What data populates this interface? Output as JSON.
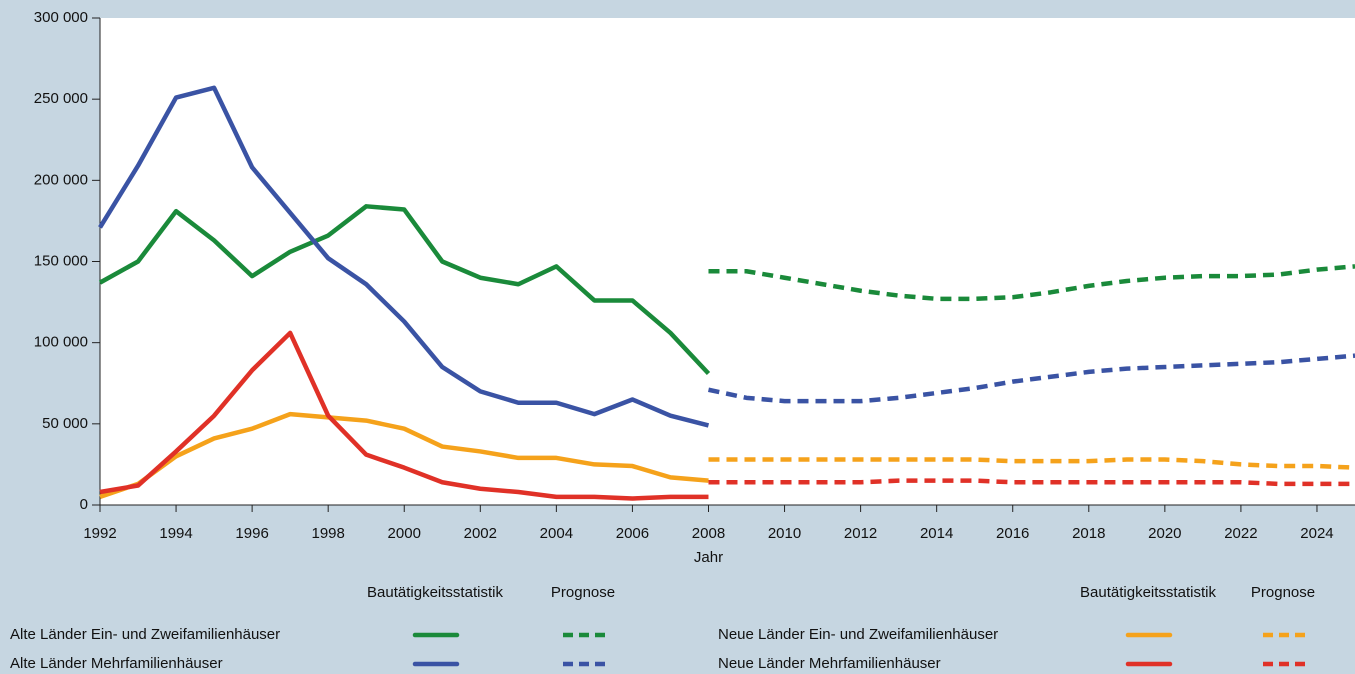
{
  "chart_data": {
    "type": "line",
    "x_label": "Jahr",
    "xlim": [
      1992,
      2025
    ],
    "xticks": [
      1992,
      1994,
      1996,
      1998,
      2000,
      2002,
      2004,
      2006,
      2008,
      2010,
      2012,
      2014,
      2016,
      2018,
      2020,
      2022,
      2024
    ],
    "ylim": [
      0,
      300000
    ],
    "yticks": [
      0,
      {
        "value": 50000,
        "label": "50 000"
      },
      {
        "value": 100000,
        "label": "100 000"
      },
      {
        "value": 150000,
        "label": "150 000"
      },
      {
        "value": 200000,
        "label": "200 000"
      },
      {
        "value": 250000,
        "label": "250 000"
      },
      {
        "value": 300000,
        "label": "300 000"
      }
    ],
    "legend_headers": [
      "Bautätigkeitsstatistik",
      "Prognose"
    ],
    "x": [
      1992,
      1993,
      1994,
      1995,
      1996,
      1997,
      1998,
      1999,
      2000,
      2001,
      2002,
      2003,
      2004,
      2005,
      2006,
      2007,
      2008
    ],
    "x_forecast": [
      2008,
      2009,
      2010,
      2011,
      2012,
      2013,
      2014,
      2015,
      2016,
      2017,
      2018,
      2019,
      2020,
      2021,
      2022,
      2023,
      2024,
      2025
    ],
    "series": [
      {
        "name": "Alte Länder Ein- und Zweifamilienhäuser",
        "color": "#1a8a3a",
        "values": [
          137000,
          150000,
          181000,
          163000,
          141000,
          156000,
          166000,
          184000,
          182000,
          150000,
          140000,
          136000,
          147000,
          126000,
          126000,
          106000,
          81000
        ],
        "forecast_values": [
          144000,
          144000,
          140000,
          136000,
          132000,
          129000,
          127000,
          127000,
          128000,
          131000,
          135000,
          138000,
          140000,
          141000,
          141000,
          142000,
          145000,
          147000
        ]
      },
      {
        "name": "Alte Länder Mehrfamilienhäuser",
        "color": "#3a53a4",
        "values": [
          171000,
          209000,
          251000,
          257000,
          208000,
          180000,
          152000,
          136000,
          113000,
          85000,
          70000,
          63000,
          63000,
          56000,
          65000,
          55000,
          49000
        ],
        "forecast_values": [
          71000,
          66000,
          64000,
          64000,
          64000,
          66000,
          69000,
          72000,
          76000,
          79000,
          82000,
          84000,
          85000,
          86000,
          87000,
          88000,
          90000,
          92000
        ]
      },
      {
        "name": "Neue Länder Ein- und Zweifamilienhäuser",
        "color": "#f5a21b",
        "values": [
          5000,
          13000,
          30000,
          41000,
          47000,
          56000,
          54000,
          52000,
          47000,
          36000,
          33000,
          29000,
          29000,
          25000,
          24000,
          17000,
          15000
        ],
        "forecast_values": [
          28000,
          28000,
          28000,
          28000,
          28000,
          28000,
          28000,
          28000,
          27000,
          27000,
          27000,
          28000,
          28000,
          27000,
          25000,
          24000,
          24000,
          23000
        ]
      },
      {
        "name": "Neue Länder Mehrfamilienhäuser",
        "color": "#e03127",
        "values": [
          8000,
          12000,
          33000,
          55000,
          83000,
          106000,
          55000,
          31000,
          23000,
          14000,
          10000,
          8000,
          5000,
          5000,
          4000,
          5000,
          5000
        ],
        "forecast_values": [
          14000,
          14000,
          14000,
          14000,
          14000,
          15000,
          15000,
          15000,
          14000,
          14000,
          14000,
          14000,
          14000,
          14000,
          14000,
          13000,
          13000,
          13000
        ]
      }
    ]
  }
}
